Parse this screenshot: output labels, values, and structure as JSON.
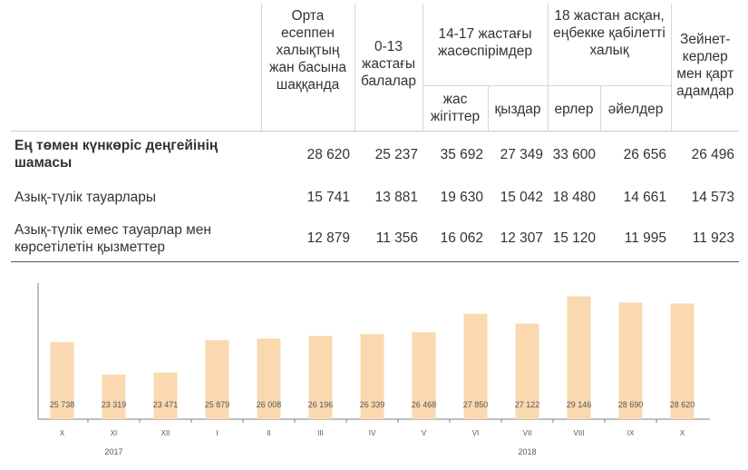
{
  "table": {
    "headers": {
      "per_capita": "Орта есеппен халықтың жан басына шаққанда",
      "children": "0-13 жастағы балалар",
      "teens": "14-17 жастағы жасөспірімдер",
      "adults": "18 жастан асқан, еңбекке қабілетті халық",
      "pensioners": "Зейнет-керлер мен қарт адамдар",
      "teen_boys": "жас жігіттер",
      "teen_girls": "қыздар",
      "men": "ерлер",
      "women": "әйелдер"
    },
    "rows": [
      {
        "label": "Ең төмен күнкөріс деңгейінің шамасы",
        "bold": true,
        "values": [
          "28 620",
          "25 237",
          "35 692",
          "27 349",
          "33 600",
          "26 656",
          "26 496"
        ]
      },
      {
        "label": "Азық-түлік тауарлары",
        "bold": false,
        "values": [
          "15 741",
          "13 881",
          "19 630",
          "15 042",
          "18 480",
          "14 661",
          "14 573"
        ]
      },
      {
        "label": "Азық-түлік емес тауарлар мен көрсетілетін қызметтер",
        "bold": false,
        "values": [
          "12 879",
          "11 356",
          "16 062",
          "12 307",
          "15 120",
          "11 995",
          "11 923"
        ]
      }
    ]
  },
  "chart_data": {
    "type": "bar",
    "categories": [
      "X",
      "XI",
      "XII",
      "I",
      "II",
      "III",
      "IV",
      "V",
      "VI",
      "VII",
      "VIII",
      "IX",
      "X"
    ],
    "values": [
      25738,
      23319,
      23471,
      25879,
      26008,
      26196,
      26339,
      26468,
      27850,
      27122,
      29146,
      28690,
      28620
    ],
    "value_labels": [
      "25 738",
      "23 319",
      "23 471",
      "25 879",
      "26 008",
      "26 196",
      "26 339",
      "26 468",
      "27 850",
      "27 122",
      "29 146",
      "28 690",
      "28 620"
    ],
    "year_labels": [
      {
        "text": "2017",
        "category_index": 1
      },
      {
        "text": "2018",
        "category_index": 9
      }
    ],
    "bar_color": "#fad9b1",
    "label_color": "#555555",
    "axis_color": "#7f7f7f",
    "grid": false,
    "ylim": [
      20000,
      30000
    ]
  }
}
